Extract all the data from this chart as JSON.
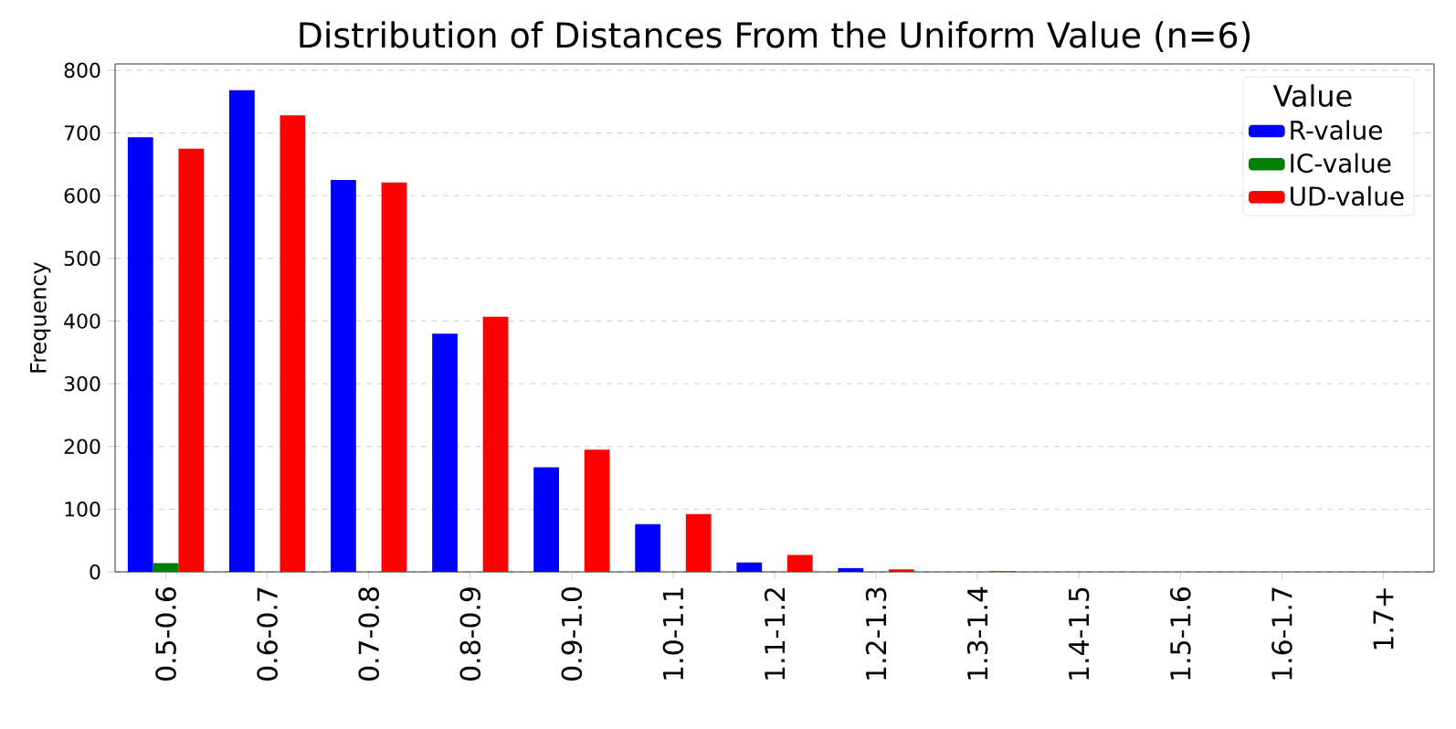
{
  "chart_data": {
    "type": "bar",
    "title": "Distribution of Distances From the Uniform Value (n=6)",
    "ylabel": "Frequency",
    "legend_title": "Value",
    "categories": [
      "0.5-0.6",
      "0.6-0.7",
      "0.7-0.8",
      "0.8-0.9",
      "0.9-1.0",
      "1.0-1.1",
      "1.1-1.2",
      "1.2-1.3",
      "1.3-1.4",
      "1.4-1.5",
      "1.5-1.6",
      "1.6-1.7",
      "1.7+"
    ],
    "series": [
      {
        "name": "R-value",
        "color": "#0000ff",
        "values": [
          693,
          768,
          625,
          380,
          167,
          76,
          15,
          6,
          0,
          0,
          0,
          0,
          0
        ]
      },
      {
        "name": "IC-value",
        "color": "#008000",
        "values": [
          14,
          0,
          0,
          0,
          0,
          0,
          0,
          0,
          0,
          0,
          0,
          0,
          0
        ]
      },
      {
        "name": "UD-value",
        "color": "#ff0000",
        "values": [
          675,
          728,
          621,
          407,
          195,
          92,
          27,
          4,
          1,
          0,
          0,
          0,
          0
        ]
      }
    ],
    "ylim": [
      0,
      810
    ],
    "yticks": [
      0,
      100,
      200,
      300,
      400,
      500,
      600,
      700,
      800
    ],
    "grid": "y",
    "legend": "top right"
  }
}
